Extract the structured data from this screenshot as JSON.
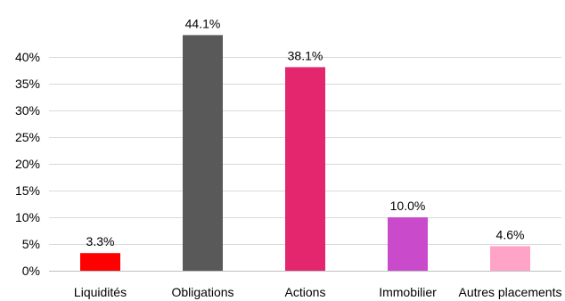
{
  "chart_data": {
    "type": "bar",
    "title": "",
    "xlabel": "",
    "ylabel": "",
    "categories": [
      "Liquidités",
      "Obligations",
      "Actions",
      "Immobilier",
      "Autres placements"
    ],
    "values": [
      3.3,
      44.1,
      38.1,
      10.0,
      4.6
    ],
    "data_labels": [
      "3.3%",
      "44.1%",
      "38.1%",
      "10.0%",
      "4.6%"
    ],
    "colors": [
      "#ff0000",
      "#595959",
      "#e3266d",
      "#c94bcc",
      "#ffa3c7"
    ],
    "ylim": [
      0,
      40
    ],
    "yticks": [
      0,
      5,
      10,
      15,
      20,
      25,
      30,
      35,
      40
    ],
    "ytick_labels": [
      "0%",
      "5%",
      "10%",
      "15%",
      "20%",
      "25%",
      "30%",
      "35%",
      "40%"
    ],
    "grid": true,
    "legend": "none"
  }
}
